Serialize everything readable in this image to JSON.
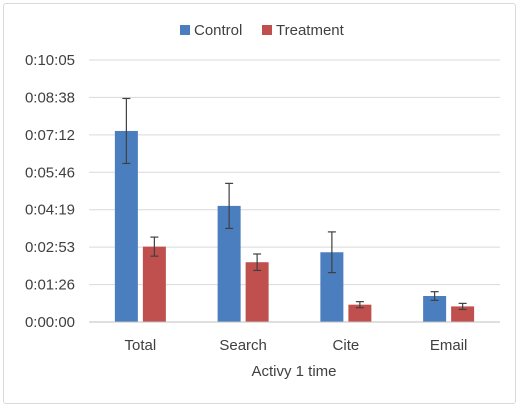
{
  "chart_data": {
    "type": "bar",
    "title": "",
    "xlabel": "Activy  1 time",
    "ylabel": "",
    "categories": [
      "Total",
      "Search",
      "Cite",
      "Email"
    ],
    "y_tick_labels": [
      "0:00:00",
      "0:01:26",
      "0:02:53",
      "0:04:19",
      "0:05:46",
      "0:07:12",
      "0:08:38",
      "0:10:05"
    ],
    "y_tick_seconds": [
      0,
      86.4,
      172.8,
      259.2,
      345.6,
      432,
      518.4,
      604.8
    ],
    "ylim_seconds": [
      0,
      604.8
    ],
    "legend_position": "top-center",
    "grid": true,
    "series": [
      {
        "name": "Control",
        "color": "#4a7ebf",
        "values_seconds": [
          441,
          268,
          161,
          60
        ],
        "error_seconds": [
          75,
          52,
          47,
          10
        ]
      },
      {
        "name": "Treatment",
        "color": "#c0504d",
        "values_seconds": [
          174,
          138,
          40,
          36
        ],
        "error_seconds": [
          22,
          19,
          7,
          7
        ]
      }
    ]
  }
}
